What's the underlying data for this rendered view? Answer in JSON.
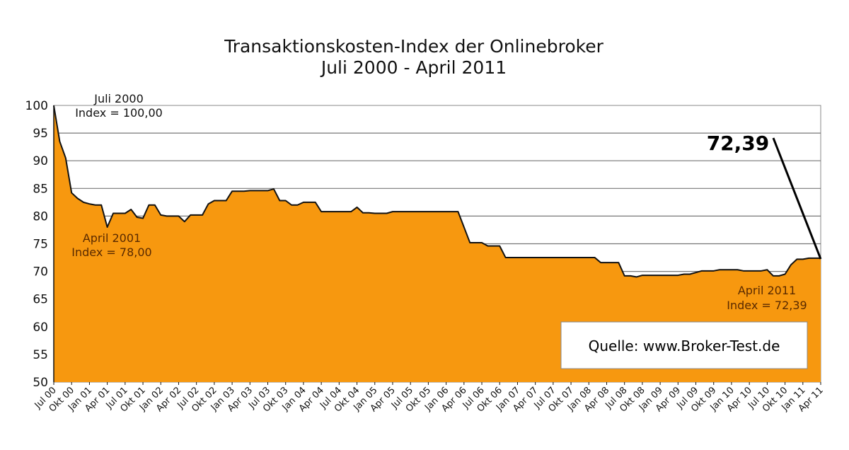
{
  "chart_data": {
    "type": "area",
    "title": "Transaktionskosten-Index der Onlinebroker",
    "subtitle": "Juli 2000 - April 2011",
    "xlabel": "",
    "ylabel": "",
    "ylim": [
      50,
      100
    ],
    "yticks": [
      100,
      95,
      90,
      85,
      80,
      75,
      70,
      65,
      60,
      55,
      50
    ],
    "grid": "horizontal",
    "fill_color": "#F7980F",
    "line_color": "#111111",
    "categories": [
      "Jul 00",
      "Okt 00",
      "Jan 01",
      "Apr 01",
      "Jul 01",
      "Okt 01",
      "Jan 02",
      "Apr 02",
      "Jul 02",
      "Okt 02",
      "Jan 03",
      "Apr 03",
      "Jul 03",
      "Okt 03",
      "Jan 04",
      "Apr 04",
      "Jul 04",
      "Okt 04",
      "Jan 05",
      "Apr 05",
      "Jul 05",
      "Okt 05",
      "Jan 06",
      "Apr 06",
      "Jul 06",
      "Okt 06",
      "Jan 07",
      "Apr 07",
      "Jul 07",
      "Okt 07",
      "Jan 08",
      "Apr 08",
      "Jul 08",
      "Okt 08",
      "Jan 09",
      "Apr 09",
      "Jul 09",
      "Okt 09",
      "Jan 10",
      "Apr 10",
      "Jul 10",
      "Okt 10",
      "Jan 11",
      "Apr 11"
    ],
    "series": [
      {
        "x": [
          "2000-07",
          "2000-08",
          "2000-09",
          "2000-10",
          "2000-11",
          "2000-12",
          "2001-01",
          "2001-02",
          "2001-03",
          "2001-04",
          "2001-05",
          "2001-06",
          "2001-07",
          "2001-08",
          "2001-09",
          "2001-10",
          "2001-11",
          "2001-12",
          "2002-01",
          "2002-02",
          "2002-03",
          "2002-04",
          "2002-05",
          "2002-06",
          "2002-07",
          "2002-08",
          "2002-09",
          "2002-10",
          "2002-11",
          "2002-12",
          "2003-01",
          "2003-02",
          "2003-03",
          "2003-04",
          "2003-05",
          "2003-06",
          "2003-07",
          "2003-08",
          "2003-09",
          "2003-10",
          "2003-11",
          "2003-12",
          "2004-01",
          "2004-02",
          "2004-03",
          "2004-04",
          "2004-05",
          "2004-06",
          "2004-07",
          "2004-08",
          "2004-09",
          "2004-10",
          "2004-11",
          "2004-12",
          "2005-01",
          "2005-02",
          "2005-03",
          "2005-04",
          "2005-05",
          "2005-06",
          "2005-07",
          "2005-08",
          "2005-09",
          "2005-10",
          "2005-11",
          "2005-12",
          "2006-01",
          "2006-02",
          "2006-03",
          "2006-04",
          "2006-05",
          "2006-06",
          "2006-07",
          "2006-08",
          "2006-09",
          "2006-10",
          "2006-11",
          "2006-12",
          "2007-01",
          "2007-02",
          "2007-03",
          "2007-04",
          "2007-05",
          "2007-06",
          "2007-07",
          "2007-08",
          "2007-09",
          "2007-10",
          "2007-11",
          "2007-12",
          "2008-01",
          "2008-02",
          "2008-03",
          "2008-04",
          "2008-05",
          "2008-06",
          "2008-07",
          "2008-08",
          "2008-09",
          "2008-10",
          "2008-11",
          "2008-12",
          "2009-01",
          "2009-02",
          "2009-03",
          "2009-04",
          "2009-05",
          "2009-06",
          "2009-07",
          "2009-08",
          "2009-09",
          "2009-10",
          "2009-11",
          "2009-12",
          "2010-01",
          "2010-02",
          "2010-03",
          "2010-04",
          "2010-05",
          "2010-06",
          "2010-07",
          "2010-08",
          "2010-09",
          "2010-10",
          "2010-11",
          "2010-12",
          "2011-01",
          "2011-02",
          "2011-03",
          "2011-04"
        ],
        "values": [
          100.0,
          93.5,
          90.5,
          84.2,
          83.2,
          82.5,
          82.2,
          82.0,
          82.0,
          78.0,
          80.5,
          80.5,
          80.5,
          81.2,
          79.8,
          79.6,
          82.0,
          82.0,
          80.2,
          80.0,
          80.0,
          80.0,
          79.0,
          80.2,
          80.2,
          80.2,
          82.2,
          82.8,
          82.8,
          82.8,
          84.5,
          84.5,
          84.5,
          84.6,
          84.6,
          84.6,
          84.6,
          84.9,
          82.8,
          82.8,
          82.0,
          82.0,
          82.5,
          82.5,
          82.5,
          80.8,
          80.8,
          80.8,
          80.8,
          80.8,
          80.8,
          81.6,
          80.6,
          80.6,
          80.5,
          80.5,
          80.5,
          80.8,
          80.8,
          80.8,
          80.8,
          80.8,
          80.8,
          80.8,
          80.8,
          80.8,
          80.8,
          80.8,
          80.8,
          78.0,
          75.2,
          75.2,
          75.2,
          74.6,
          74.6,
          74.6,
          72.5,
          72.5,
          72.5,
          72.5,
          72.5,
          72.5,
          72.5,
          72.5,
          72.5,
          72.5,
          72.5,
          72.5,
          72.5,
          72.5,
          72.5,
          72.5,
          71.6,
          71.6,
          71.6,
          71.6,
          69.2,
          69.2,
          69.0,
          69.3,
          69.3,
          69.3,
          69.3,
          69.3,
          69.3,
          69.3,
          69.5,
          69.5,
          69.8,
          70.1,
          70.1,
          70.1,
          70.3,
          70.3,
          70.3,
          70.3,
          70.1,
          70.1,
          70.1,
          70.1,
          70.3,
          69.2,
          69.2,
          69.5,
          71.2,
          72.2,
          72.2,
          72.39,
          72.39,
          72.39
        ]
      }
    ],
    "annotations": {
      "start": {
        "line1": "Juli 2000",
        "line2": "Index = 100,00"
      },
      "low": {
        "line1": "April 2001",
        "line2": "Index = 78,00"
      },
      "end": {
        "line1": "April 2011",
        "line2": "Index = 72,39"
      },
      "highlight": "72,39",
      "source": "Quelle:  www.Broker-Test.de"
    }
  }
}
